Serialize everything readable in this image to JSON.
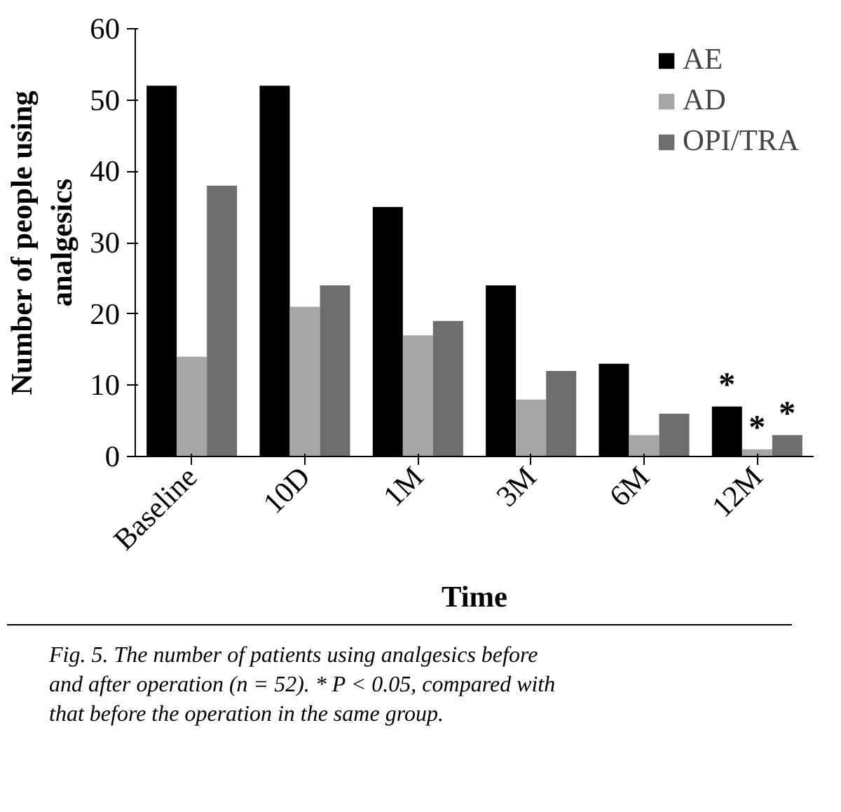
{
  "chart_data": {
    "type": "bar",
    "xlabel": "Time",
    "ylabel": "Number of people using\nanalgesics",
    "categories": [
      "Baseline",
      "10D",
      "1M",
      "3M",
      "6M",
      "12M"
    ],
    "series": [
      {
        "name": "AE",
        "color": "#000000",
        "values": [
          52,
          52,
          35,
          24,
          13,
          7
        ],
        "value_labels": [
          null,
          null,
          null,
          null,
          null,
          "*"
        ]
      },
      {
        "name": "AD",
        "color": "#a6a6a6",
        "values": [
          14,
          21,
          17,
          8,
          3,
          1
        ],
        "value_labels": [
          null,
          null,
          null,
          null,
          null,
          "*"
        ]
      },
      {
        "name": "OPI/TRA",
        "color": "#6d6d6d",
        "values": [
          38,
          24,
          19,
          12,
          6,
          3
        ],
        "value_labels": [
          null,
          null,
          null,
          null,
          null,
          "*"
        ]
      }
    ],
    "ylim": [
      0,
      60
    ],
    "yticks": [
      0,
      10,
      20,
      30,
      40,
      50,
      60
    ],
    "grid": false,
    "legend": "top right",
    "annotations": [
      "Fig. 5. The number of  patients using analgesics before and after operation (n = 52). * P < 0.05, compared with that before the operation in the same group."
    ]
  }
}
